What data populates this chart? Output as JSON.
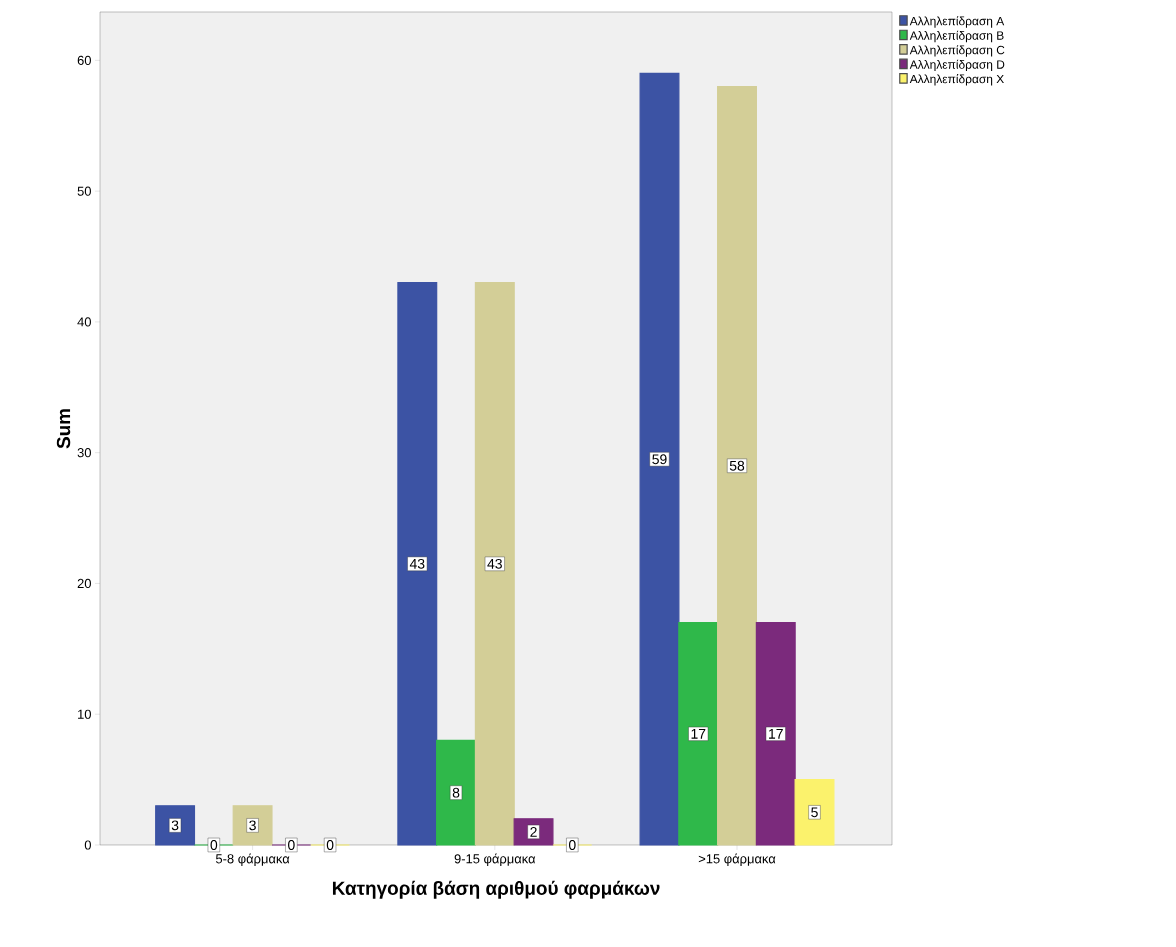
{
  "chart_data": {
    "type": "bar",
    "xlabel": "Κατηγορία βάση αριθμού φαρμάκων",
    "ylabel": "Sum",
    "categories": [
      "5-8 φάρμακα",
      "9-15 φάρμακα",
      ">15 φάρμακα"
    ],
    "series": [
      {
        "name": "Αλληλεπίδραση A",
        "color": "#3c53a4",
        "values": [
          3,
          43,
          59
        ]
      },
      {
        "name": "Αλληλεπίδραση B",
        "color": "#2fb84a",
        "values": [
          0,
          8,
          17
        ]
      },
      {
        "name": "Αλληλεπίδραση C",
        "color": "#d3ce97",
        "values": [
          3,
          43,
          58
        ]
      },
      {
        "name": "Αλληλεπίδραση D",
        "color": "#7b2a7c",
        "values": [
          0,
          2,
          17
        ]
      },
      {
        "name": "Αλληλεπίδραση X",
        "color": "#fbf26c",
        "values": [
          0,
          0,
          5
        ]
      }
    ],
    "ylim": [
      0,
      63.7
    ],
    "yticks": [
      0,
      10,
      20,
      30,
      40,
      50,
      60
    ],
    "data_labels": true,
    "legend": "right",
    "grid": false
  }
}
